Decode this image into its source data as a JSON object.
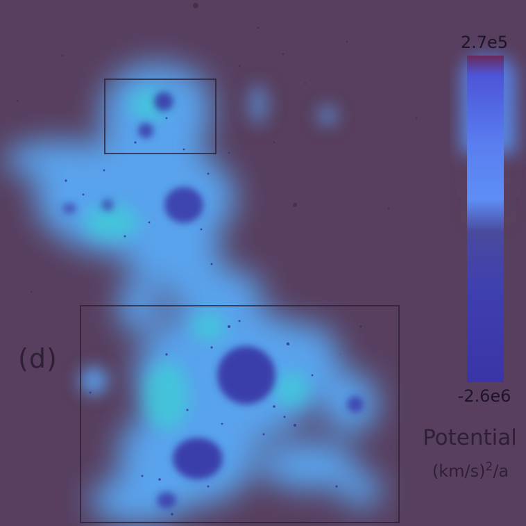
{
  "panel": {
    "label": "(d)"
  },
  "colorbar": {
    "max_label": "2.7e5",
    "min_label": "-2.6e6",
    "quantity_label": "Potential",
    "unit_base": "(km/s)",
    "unit_exp": "2",
    "unit_tail": "/a",
    "colors": {
      "low": "#3a34a0",
      "mid": "#5a7ff0",
      "high": "#4f6ae6",
      "top": "#6a1f4a"
    }
  },
  "colors": {
    "background": "#583f5f",
    "cloud": "#5aa9f5",
    "cloud_core": "#3bd0d8",
    "cluster": "#3a3aa8",
    "box_stroke": "#2a1e33"
  },
  "annotations": {
    "box_count": 2
  }
}
